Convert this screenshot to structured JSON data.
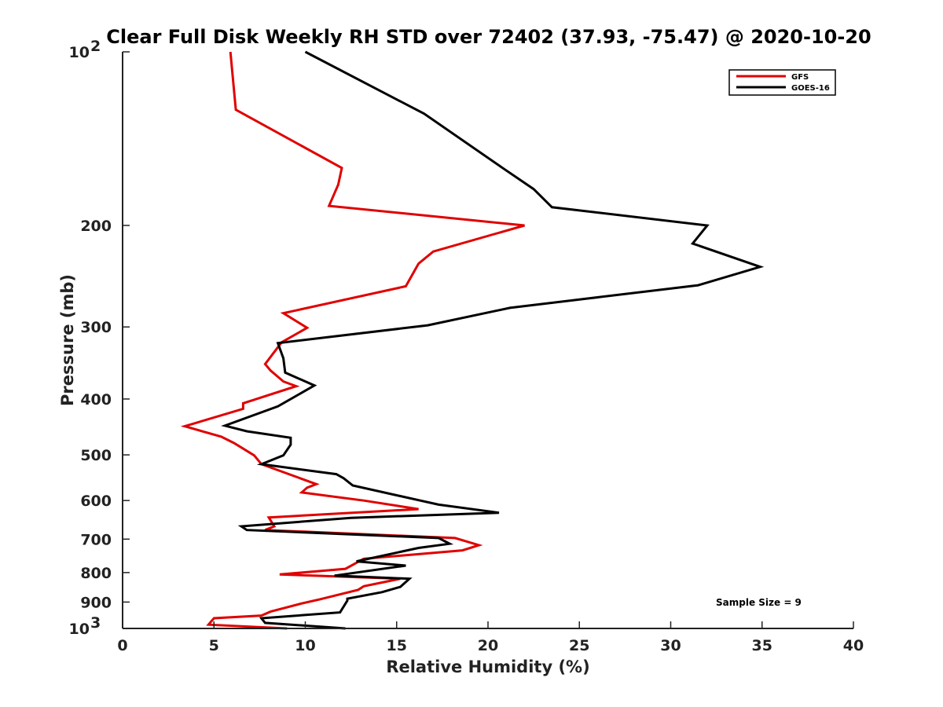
{
  "chart_data": {
    "type": "line",
    "title": "Clear Full Disk Weekly RH STD over 72402 (37.93, -75.47) @ 2020-10-20",
    "xlabel": "Relative Humidity (%)",
    "ylabel": "Pressure (mb)",
    "xlim": [
      0,
      40
    ],
    "ylim": [
      100,
      1000
    ],
    "yscale": "log",
    "y_reversed": true,
    "grid": false,
    "legend_position": "top-right",
    "x_ticks": [
      {
        "value": 0,
        "label": "0"
      },
      {
        "value": 5,
        "label": "5"
      },
      {
        "value": 10,
        "label": "10"
      },
      {
        "value": 15,
        "label": "15"
      },
      {
        "value": 20,
        "label": "20"
      },
      {
        "value": 25,
        "label": "25"
      },
      {
        "value": 30,
        "label": "30"
      },
      {
        "value": 35,
        "label": "35"
      },
      {
        "value": 40,
        "label": "40"
      }
    ],
    "y_ticks": [
      {
        "value": 100,
        "label": "10",
        "sup": "2"
      },
      {
        "value": 200,
        "label": "200",
        "sup": ""
      },
      {
        "value": 300,
        "label": "300",
        "sup": ""
      },
      {
        "value": 400,
        "label": "400",
        "sup": ""
      },
      {
        "value": 500,
        "label": "500",
        "sup": ""
      },
      {
        "value": 600,
        "label": "600",
        "sup": ""
      },
      {
        "value": 700,
        "label": "700",
        "sup": ""
      },
      {
        "value": 800,
        "label": "800",
        "sup": ""
      },
      {
        "value": 900,
        "label": "900",
        "sup": ""
      },
      {
        "value": 1000,
        "label": "10",
        "sup": "3"
      }
    ],
    "annotation": "Sample Size = 9",
    "series": [
      {
        "name": "GFS",
        "color": "#e00000",
        "points": [
          [
            5.9,
            100
          ],
          [
            6.2,
            126
          ],
          [
            12.0,
            159
          ],
          [
            11.8,
            170
          ],
          [
            11.3,
            185
          ],
          [
            22.0,
            200
          ],
          [
            17.0,
            222
          ],
          [
            16.2,
            233
          ],
          [
            15.5,
            255
          ],
          [
            8.8,
            284
          ],
          [
            10.1,
            301
          ],
          [
            8.7,
            319
          ],
          [
            7.8,
            348
          ],
          [
            8.1,
            357
          ],
          [
            8.8,
            373
          ],
          [
            9.5,
            380
          ],
          [
            6.6,
            407
          ],
          [
            6.6,
            416
          ],
          [
            3.4,
            446
          ],
          [
            5.4,
            465
          ],
          [
            6.1,
            477
          ],
          [
            7.2,
            501
          ],
          [
            7.6,
            519
          ],
          [
            10.6,
            562
          ],
          [
            10.1,
            570
          ],
          [
            9.8,
            581
          ],
          [
            13.2,
            600
          ],
          [
            16.2,
            621
          ],
          [
            8.0,
            642
          ],
          [
            8.3,
            665
          ],
          [
            7.8,
            675
          ],
          [
            18.2,
            697
          ],
          [
            19.5,
            717
          ],
          [
            18.6,
            732
          ],
          [
            13.2,
            757
          ],
          [
            12.2,
            788
          ],
          [
            8.6,
            806
          ],
          [
            15.2,
            820
          ],
          [
            13.2,
            845
          ],
          [
            12.9,
            857
          ],
          [
            10.8,
            890
          ],
          [
            9.8,
            905
          ],
          [
            8.1,
            935
          ],
          [
            7.6,
            950
          ],
          [
            5.0,
            960
          ],
          [
            4.7,
            985
          ],
          [
            9.0,
            1000
          ]
        ]
      },
      {
        "name": "GOES-16",
        "color": "#000000",
        "points": [
          [
            10.0,
            100
          ],
          [
            16.5,
            128
          ],
          [
            20.8,
            159
          ],
          [
            22.5,
            173
          ],
          [
            23.5,
            186
          ],
          [
            32.0,
            200
          ],
          [
            31.2,
            215
          ],
          [
            34.9,
            236
          ],
          [
            31.5,
            254
          ],
          [
            21.2,
            278
          ],
          [
            16.7,
            298
          ],
          [
            8.5,
            320
          ],
          [
            8.8,
            340
          ],
          [
            8.9,
            360
          ],
          [
            10.5,
            379
          ],
          [
            8.5,
            412
          ],
          [
            5.6,
            445
          ],
          [
            6.8,
            455
          ],
          [
            9.2,
            467
          ],
          [
            9.2,
            480
          ],
          [
            8.8,
            501
          ],
          [
            7.6,
            519
          ],
          [
            11.7,
            540
          ],
          [
            12.1,
            549
          ],
          [
            12.6,
            565
          ],
          [
            17.3,
            610
          ],
          [
            20.6,
            630
          ],
          [
            12.5,
            643
          ],
          [
            6.5,
            665
          ],
          [
            6.8,
            675
          ],
          [
            17.3,
            697
          ],
          [
            17.9,
            713
          ],
          [
            16.2,
            725
          ],
          [
            12.8,
            765
          ],
          [
            15.5,
            778
          ],
          [
            11.6,
            810
          ],
          [
            15.7,
            820
          ],
          [
            15.2,
            847
          ],
          [
            14.2,
            865
          ],
          [
            12.3,
            888
          ],
          [
            12.3,
            895
          ],
          [
            11.9,
            938
          ],
          [
            7.6,
            960
          ],
          [
            7.8,
            978
          ],
          [
            12.2,
            1000
          ]
        ]
      }
    ]
  }
}
